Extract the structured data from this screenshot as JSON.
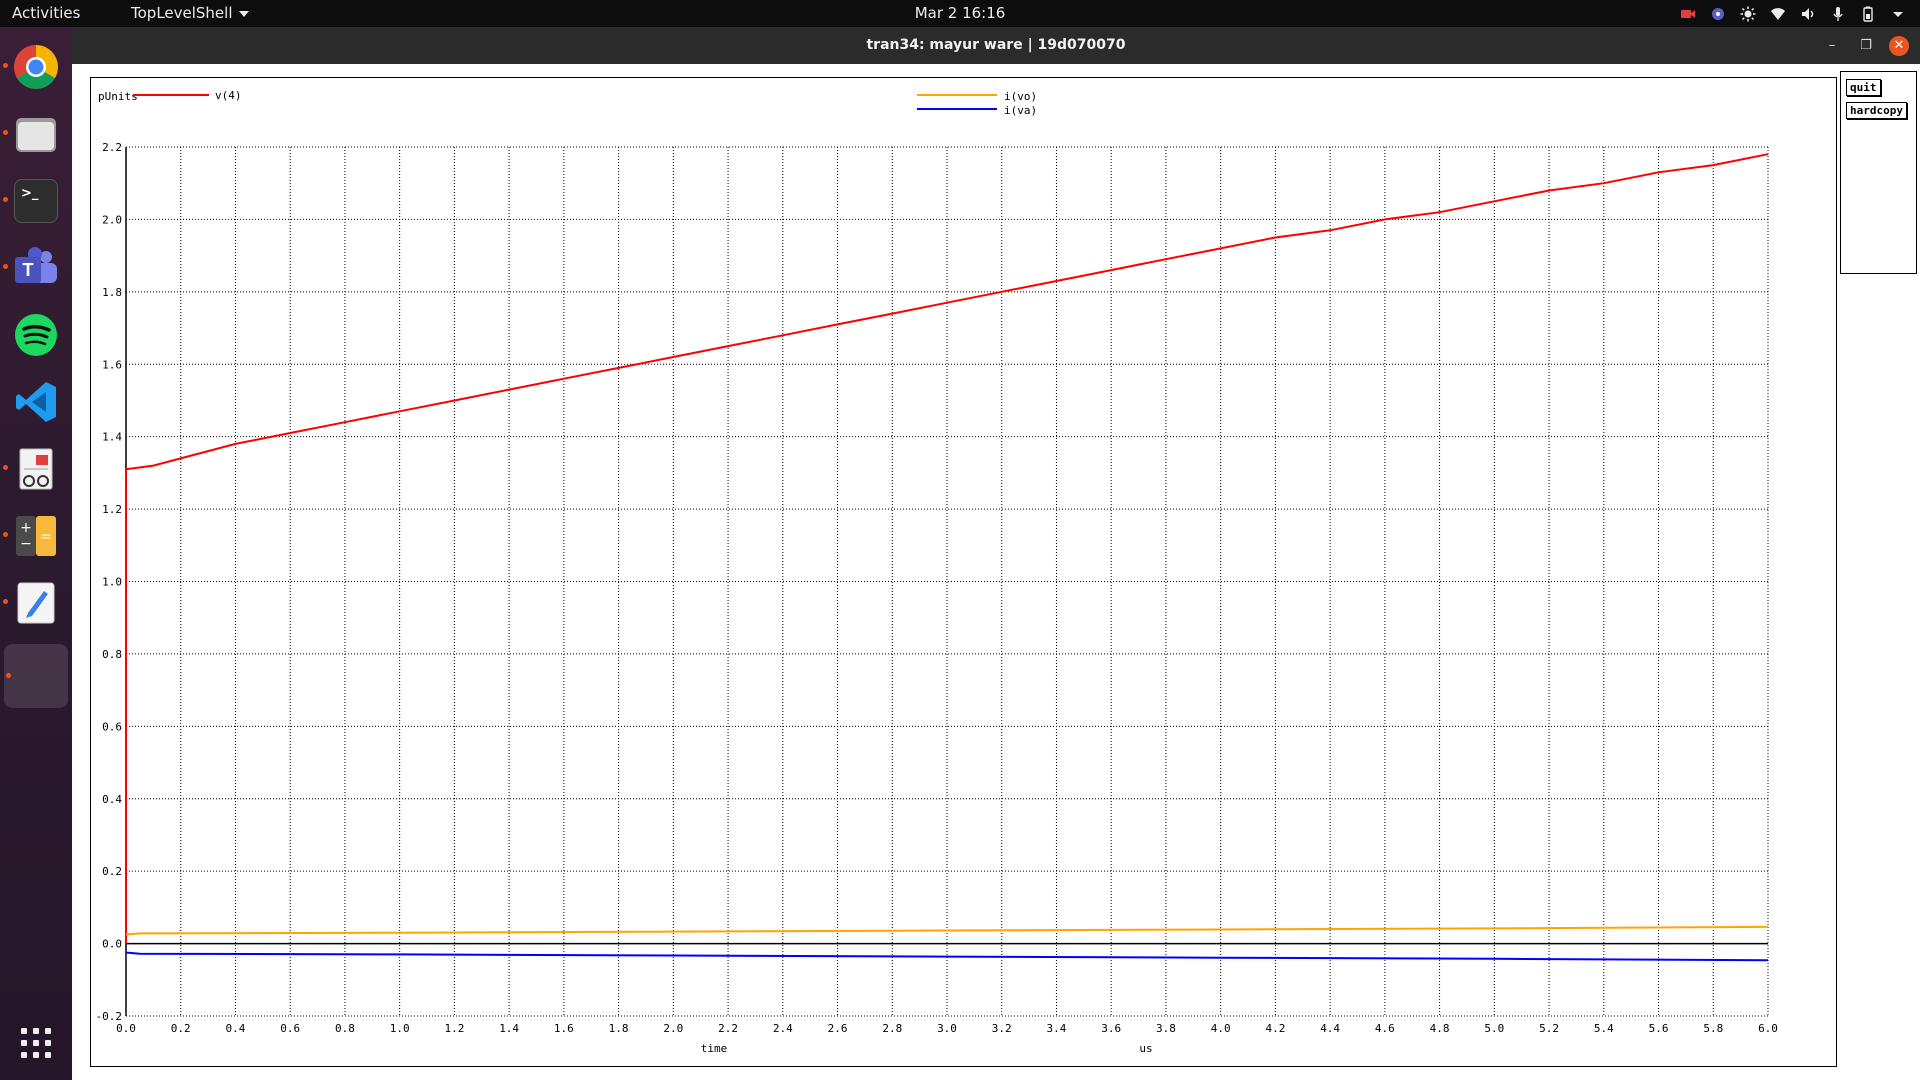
{
  "topbar": {
    "activities": "Activities",
    "app_menu": "TopLevelShell",
    "clock": "Mar 2  16:16"
  },
  "dock": {
    "items": [
      {
        "name": "chrome"
      },
      {
        "name": "files"
      },
      {
        "name": "terminal"
      },
      {
        "name": "teams"
      },
      {
        "name": "spotify"
      },
      {
        "name": "vscode"
      },
      {
        "name": "document-viewer"
      },
      {
        "name": "calculator"
      },
      {
        "name": "text-editor"
      },
      {
        "name": "active-app"
      }
    ]
  },
  "window": {
    "title": "tran34: mayur ware | 19d070070"
  },
  "buttons": {
    "quit": "quit",
    "hardcopy": "hardcopy"
  },
  "chart_data": {
    "type": "line",
    "y_units_label": "pUnits",
    "xlabel": "time",
    "x_units": "us",
    "xlim": [
      0,
      6
    ],
    "ylim": [
      -0.2,
      2.2
    ],
    "x_ticks": [
      "0.0",
      "0.2",
      "0.4",
      "0.6",
      "0.8",
      "1.0",
      "1.2",
      "1.4",
      "1.6",
      "1.8",
      "2.0",
      "2.2",
      "2.4",
      "2.6",
      "2.8",
      "3.0",
      "3.2",
      "3.4",
      "3.6",
      "3.8",
      "4.0",
      "4.2",
      "4.4",
      "4.6",
      "4.8",
      "5.0",
      "5.2",
      "5.4",
      "5.6",
      "5.8",
      "6.0"
    ],
    "y_ticks": [
      "-0.2",
      "0.0",
      "0.2",
      "0.4",
      "0.6",
      "0.8",
      "1.0",
      "1.2",
      "1.4",
      "1.6",
      "1.8",
      "2.0",
      "2.2"
    ],
    "grid": true,
    "series": [
      {
        "name": "v(4)",
        "color": "#ff0000",
        "x": [
          0,
          0.0,
          0.1,
          0.2,
          0.4,
          0.6,
          0.8,
          1.0,
          1.2,
          1.4,
          1.6,
          1.8,
          2.0,
          2.2,
          2.4,
          2.6,
          2.8,
          3.0,
          3.2,
          3.4,
          3.6,
          3.8,
          4.0,
          4.2,
          4.4,
          4.6,
          4.8,
          5.0,
          5.2,
          5.4,
          5.6,
          5.8,
          6.0
        ],
        "y": [
          0.0,
          1.31,
          1.32,
          1.34,
          1.38,
          1.41,
          1.44,
          1.47,
          1.5,
          1.53,
          1.56,
          1.59,
          1.62,
          1.65,
          1.68,
          1.71,
          1.74,
          1.77,
          1.8,
          1.83,
          1.86,
          1.89,
          1.92,
          1.95,
          1.97,
          2.0,
          2.02,
          2.05,
          2.08,
          2.1,
          2.13,
          2.15,
          2.18
        ]
      },
      {
        "name": "i(vo)",
        "color": "#ffa500",
        "x": [
          0,
          0.05,
          1.0,
          2.0,
          3.0,
          4.0,
          5.0,
          6.0
        ],
        "y": [
          0.025,
          0.028,
          0.03,
          0.033,
          0.036,
          0.039,
          0.042,
          0.046
        ]
      },
      {
        "name": "i(va)",
        "color": "#0000ff",
        "x": [
          0,
          0.05,
          1.0,
          2.0,
          3.0,
          4.0,
          5.0,
          6.0
        ],
        "y": [
          -0.025,
          -0.028,
          -0.03,
          -0.033,
          -0.036,
          -0.039,
          -0.042,
          -0.046
        ]
      }
    ]
  }
}
